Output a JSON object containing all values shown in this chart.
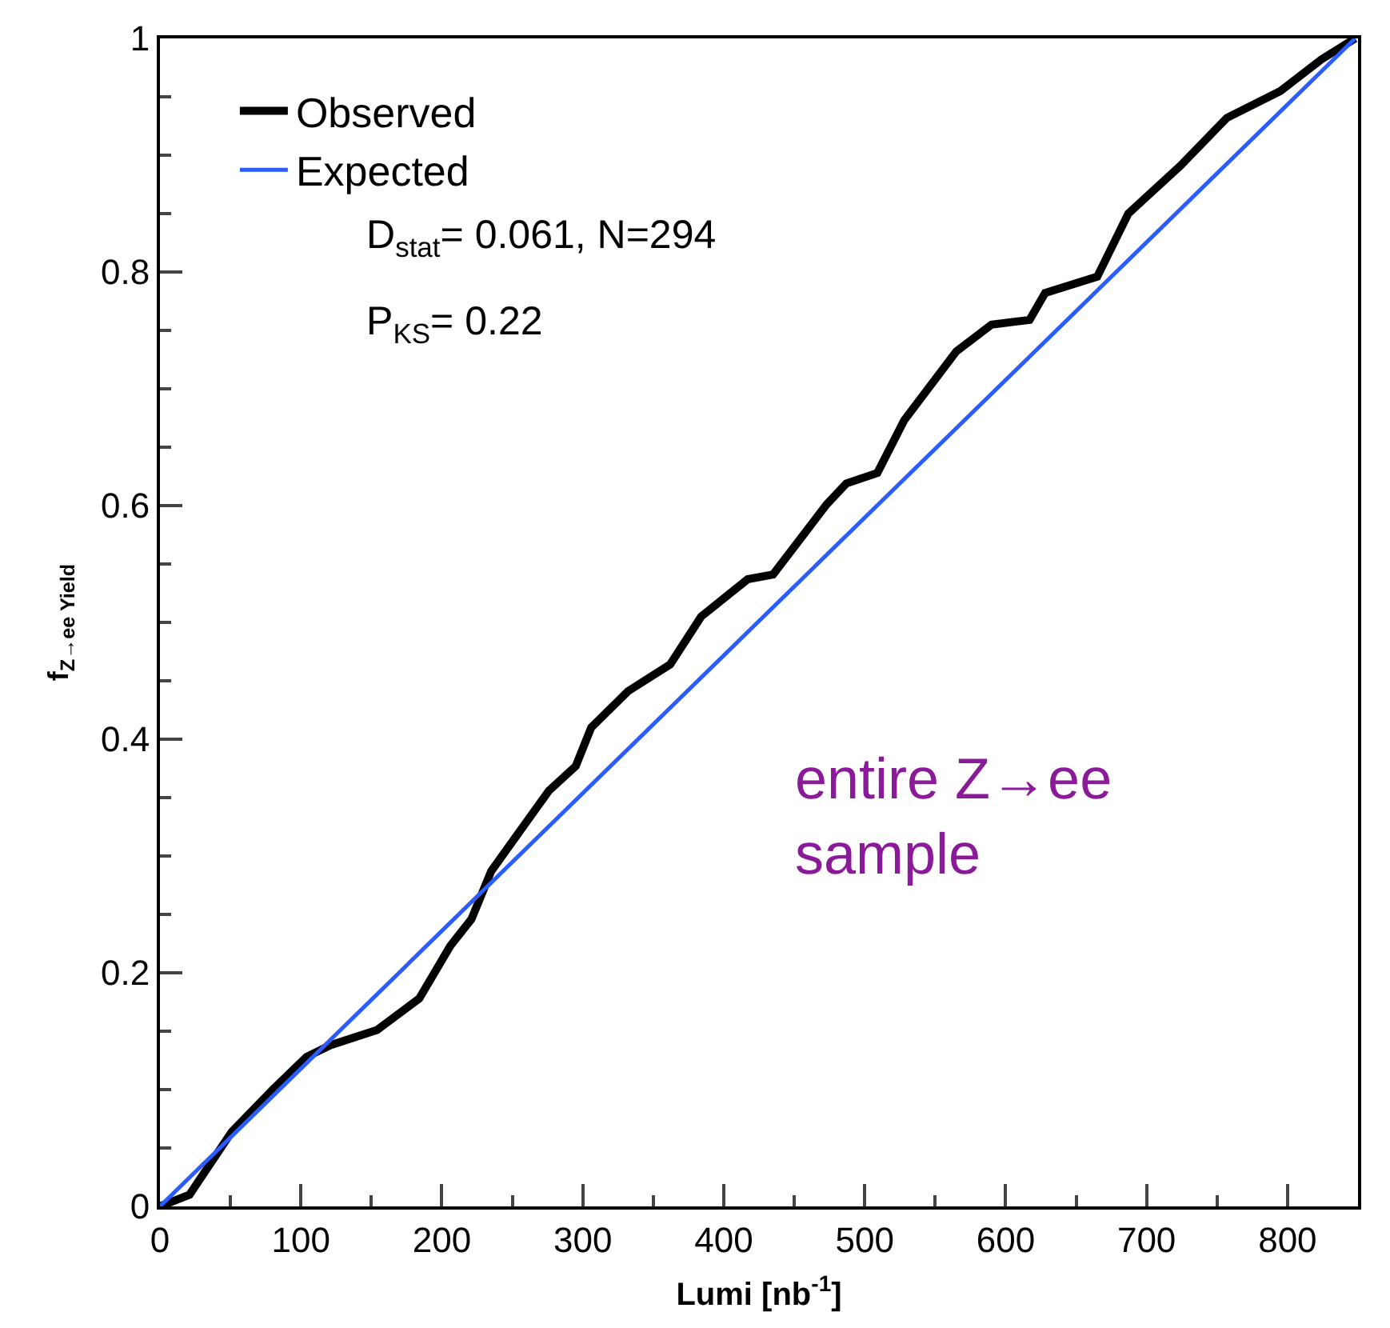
{
  "chart_data": {
    "type": "line",
    "xlabel": "Lumi [nb$^{-1}$]",
    "ylabel": "f$_{Z→ee Yield}$",
    "xlim": [
      0,
      850
    ],
    "ylim": [
      0,
      1
    ],
    "xticks": [
      0,
      100,
      200,
      300,
      400,
      500,
      600,
      700,
      800
    ],
    "yticks": [
      0,
      0.2,
      0.4,
      0.6,
      0.8,
      1
    ],
    "legend": "top left",
    "series": [
      {
        "name": "Observed",
        "color": "#000000",
        "x": [
          0,
          21,
          51,
          80,
          104,
          121,
          154,
          184,
          206,
          221,
          235,
          254,
          276,
          295,
          306,
          332,
          362,
          384,
          417,
          435,
          473,
          487,
          509,
          528,
          565,
          590,
          617,
          628,
          665,
          687,
          724,
          757,
          795,
          824,
          848
        ],
        "values": [
          0,
          0.01,
          0.064,
          0.1,
          0.128,
          0.138,
          0.151,
          0.178,
          0.223,
          0.246,
          0.287,
          0.319,
          0.356,
          0.377,
          0.41,
          0.441,
          0.464,
          0.505,
          0.537,
          0.541,
          0.601,
          0.619,
          0.628,
          0.673,
          0.732,
          0.755,
          0.759,
          0.782,
          0.796,
          0.85,
          0.891,
          0.932,
          0.955,
          0.982,
          1.0
        ]
      },
      {
        "name": "Expected",
        "color": "#2a5cff",
        "x": [
          0,
          848
        ],
        "values": [
          0,
          1.0
        ]
      }
    ],
    "annotations": [
      "D$_{stat}$= 0.061, N=294",
      "P$_{KS}$= 0.22",
      "entire Z→ee sample"
    ]
  }
}
